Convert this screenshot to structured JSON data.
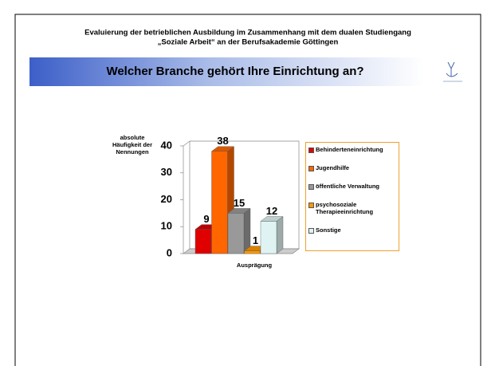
{
  "header": {
    "line1": "Evaluierung der betrieblichen Ausbildung im Zusammenhang mit dem dualen Studiengang",
    "line2": "„Soziale Arbeit“ an der Berufsakademie Göttingen",
    "heading": "Welcher Branche gehört Ihre Einrichtung an?"
  },
  "chart_data": {
    "type": "bar3d",
    "y_label": "absolute Häufigkeit der Nennungen",
    "x_label": "Ausprägung",
    "categories": [
      "Behinderteneinrichtung",
      "Jugendhilfe",
      "öffentliche Verwaltung",
      "psychosoziale Therapieeinrichtung",
      "Sonstige"
    ],
    "values": [
      9,
      38,
      15,
      1,
      12
    ],
    "colors": [
      "#e00000",
      "#ff6600",
      "#999999",
      "#ff9900",
      "#dff3f3"
    ],
    "ylim": [
      0,
      40
    ],
    "yticks": [
      0,
      10,
      20,
      30,
      40
    ],
    "grid": false,
    "legend": "right"
  }
}
